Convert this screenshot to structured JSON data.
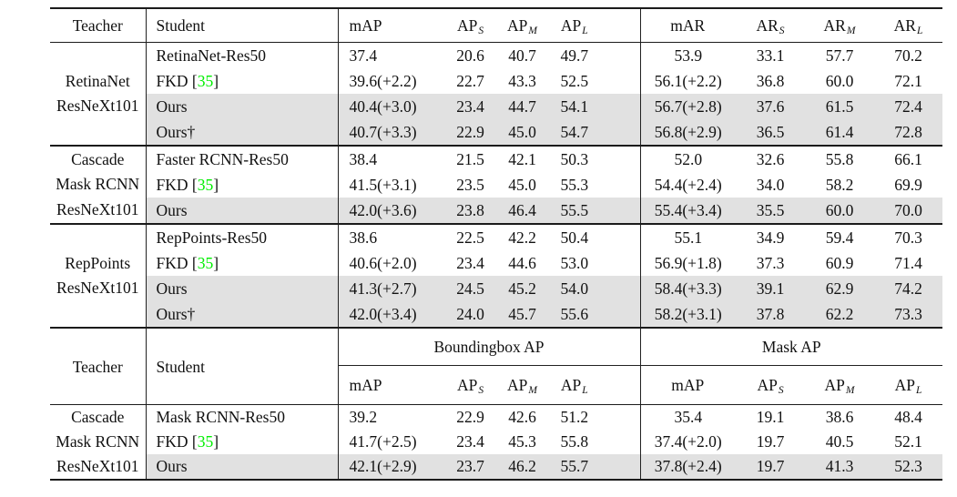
{
  "citation": {
    "open": "[",
    "num": "35",
    "close": "]"
  },
  "colors": {
    "highlight_row": "#e1e1e1",
    "citation_green": "#00ee00",
    "rule": "#1b1b1b"
  },
  "table1": {
    "header": {
      "teacher": "Teacher",
      "student": "Student",
      "cols": [
        {
          "base": "mAP",
          "sub": ""
        },
        {
          "base": "AP",
          "sub": "S"
        },
        {
          "base": "AP",
          "sub": "M"
        },
        {
          "base": "AP",
          "sub": "L"
        },
        {
          "base": "mAR",
          "sub": ""
        },
        {
          "base": "AR",
          "sub": "S"
        },
        {
          "base": "AR",
          "sub": "M"
        },
        {
          "base": "AR",
          "sub": "L"
        }
      ]
    },
    "groups": [
      {
        "teacher_lines": [
          "RetinaNet",
          "ResNeXt101"
        ],
        "rows": [
          {
            "student": "RetinaNet-Res50",
            "shaded": false,
            "values": [
              "37.4",
              "20.6",
              "40.7",
              "49.7",
              "53.9",
              "33.1",
              "57.7",
              "70.2"
            ]
          },
          {
            "student": "FKD ",
            "cite": "35",
            "shaded": false,
            "values": [
              "39.6(+2.2)",
              "22.7",
              "43.3",
              "52.5",
              "56.1(+2.2)",
              "36.8",
              "60.0",
              "72.1"
            ]
          },
          {
            "student": "Ours",
            "shaded": true,
            "values": [
              "40.4(+3.0)",
              "23.4",
              "44.7",
              "54.1",
              "56.7(+2.8)",
              "37.6",
              "61.5",
              "72.4"
            ]
          },
          {
            "student": "Ours†",
            "shaded": true,
            "values": [
              "40.7(+3.3)",
              "22.9",
              "45.0",
              "54.7",
              "56.8(+2.9)",
              "36.5",
              "61.4",
              "72.8"
            ]
          }
        ]
      },
      {
        "teacher_lines": [
          "Cascade",
          "Mask RCNN",
          "ResNeXt101"
        ],
        "rows": [
          {
            "student": "Faster RCNN-Res50",
            "shaded": false,
            "values": [
              "38.4",
              "21.5",
              "42.1",
              "50.3",
              "52.0",
              "32.6",
              "55.8",
              "66.1"
            ]
          },
          {
            "student": "FKD ",
            "cite": "35",
            "shaded": false,
            "values": [
              "41.5(+3.1)",
              "23.5",
              "45.0",
              "55.3",
              "54.4(+2.4)",
              "34.0",
              "58.2",
              "69.9"
            ]
          },
          {
            "student": "Ours",
            "shaded": true,
            "values": [
              "42.0(+3.6)",
              "23.8",
              "46.4",
              "55.5",
              "55.4(+3.4)",
              "35.5",
              "60.0",
              "70.0"
            ]
          }
        ]
      },
      {
        "teacher_lines": [
          "RepPoints",
          "ResNeXt101"
        ],
        "rows": [
          {
            "student": "RepPoints-Res50",
            "shaded": false,
            "values": [
              "38.6",
              "22.5",
              "42.2",
              "50.4",
              "55.1",
              "34.9",
              "59.4",
              "70.3"
            ]
          },
          {
            "student": "FKD ",
            "cite": "35",
            "shaded": false,
            "values": [
              "40.6(+2.0)",
              "23.4",
              "44.6",
              "53.0",
              "56.9(+1.8)",
              "37.3",
              "60.9",
              "71.4"
            ]
          },
          {
            "student": "Ours",
            "shaded": true,
            "values": [
              "41.3(+2.7)",
              "24.5",
              "45.2",
              "54.0",
              "58.4(+3.3)",
              "39.1",
              "62.9",
              "74.2"
            ]
          },
          {
            "student": "Ours†",
            "shaded": true,
            "values": [
              "42.0(+3.4)",
              "24.0",
              "45.7",
              "55.6",
              "58.2(+3.1)",
              "37.8",
              "62.2",
              "73.3"
            ]
          }
        ]
      }
    ]
  },
  "table2": {
    "header": {
      "teacher": "Teacher",
      "student": "Student",
      "span_bbox": "Boundingbox AP",
      "span_mask": "Mask AP",
      "cols": [
        {
          "base": "mAP",
          "sub": ""
        },
        {
          "base": "AP",
          "sub": "S"
        },
        {
          "base": "AP",
          "sub": "M"
        },
        {
          "base": "AP",
          "sub": "L"
        },
        {
          "base": "mAP",
          "sub": ""
        },
        {
          "base": "AP",
          "sub": "S"
        },
        {
          "base": "AP",
          "sub": "M"
        },
        {
          "base": "AP",
          "sub": "L"
        }
      ]
    },
    "groups": [
      {
        "teacher_lines": [
          "Cascade",
          "Mask RCNN",
          "ResNeXt101"
        ],
        "rows": [
          {
            "student": "Mask RCNN-Res50",
            "shaded": false,
            "values": [
              "39.2",
              "22.9",
              "42.6",
              "51.2",
              "35.4",
              "19.1",
              "38.6",
              "48.4"
            ]
          },
          {
            "student": "FKD ",
            "cite": "35",
            "shaded": false,
            "values": [
              "41.7(+2.5)",
              "23.4",
              "45.3",
              "55.8",
              "37.4(+2.0)",
              "19.7",
              "40.5",
              "52.1"
            ]
          },
          {
            "student": "Ours",
            "shaded": true,
            "values": [
              "42.1(+2.9)",
              "23.7",
              "46.2",
              "55.7",
              "37.8(+2.4)",
              "19.7",
              "41.3",
              "52.3"
            ]
          }
        ]
      }
    ]
  }
}
